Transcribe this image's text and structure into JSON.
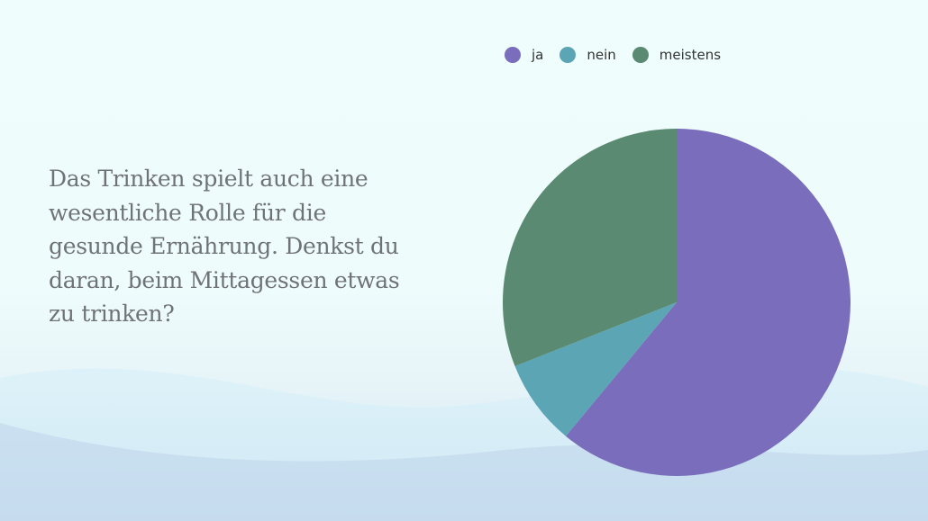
{
  "question": "Das Trinken spielt auch eine wesentliche Rolle für die gesunde Ernährung. Denkst du daran, beim Mittagessen etwas zu trinken?",
  "chart_data": {
    "type": "pie",
    "categories": [
      "ja",
      "nein",
      "meistens"
    ],
    "values": [
      61,
      8,
      31
    ],
    "colors": [
      "#7a6dbb",
      "#5ca5b4",
      "#5a8a72"
    ],
    "start": "top",
    "direction": "clockwise",
    "legend": "top"
  }
}
